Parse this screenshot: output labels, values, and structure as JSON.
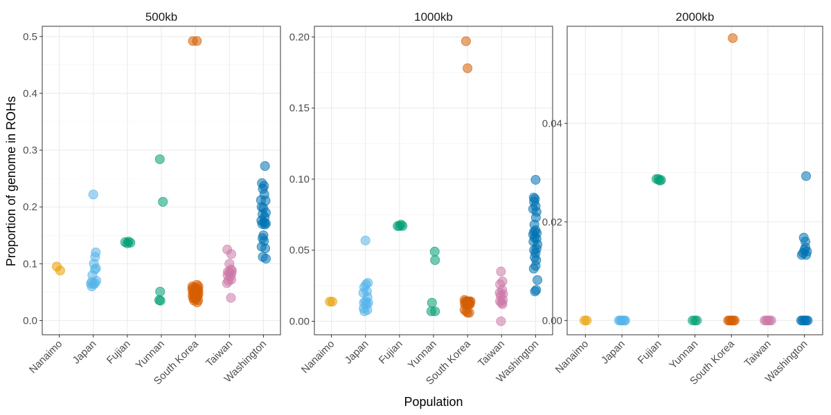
{
  "chart_data": {
    "type": "scatter",
    "subtype": "faceted jittered strip plot",
    "xlabel": "Population",
    "ylabel": "Proportion of genome in ROHs",
    "categories": [
      "Nanaimo",
      "Japan",
      "Fujian",
      "Yunnan",
      "South Korea",
      "Taiwan",
      "Washington"
    ],
    "colors": {
      "Nanaimo": "#E69F00",
      "Japan": "#56B4E9",
      "Fujian": "#009E73",
      "Yunnan": "#009E73",
      "South Korea": "#D55E00",
      "Taiwan": "#CC79A7",
      "Washington": "#0072B2"
    },
    "grid": true,
    "panels": [
      {
        "title": "500kb",
        "ylim": [
          -0.025,
          0.518
        ],
        "yticks": [
          0.0,
          0.1,
          0.2,
          0.3,
          0.4,
          0.5
        ],
        "ytick_labels": [
          "0.0",
          "0.1",
          "0.2",
          "0.3",
          "0.4",
          "0.5"
        ],
        "points": {
          "Nanaimo": [
            [
              -0.08,
              0.095
            ],
            [
              0.03,
              0.088
            ]
          ],
          "Japan": [
            [
              0.0,
              0.222
            ],
            [
              0.08,
              0.12
            ],
            [
              0.06,
              0.112
            ],
            [
              0.02,
              0.1
            ],
            [
              0.09,
              0.092
            ],
            [
              0.05,
              0.09
            ],
            [
              -0.03,
              0.08
            ],
            [
              0.1,
              0.07
            ],
            [
              -0.05,
              0.068
            ],
            [
              0.05,
              0.066
            ],
            [
              -0.08,
              0.065
            ],
            [
              0.02,
              0.064
            ],
            [
              -0.05,
              0.06
            ]
          ],
          "Fujian": [
            [
              -0.07,
              0.138
            ],
            [
              0.04,
              0.139
            ],
            [
              0.1,
              0.137
            ],
            [
              0.0,
              0.136
            ]
          ],
          "Yunnan": [
            [
              -0.05,
              0.284
            ],
            [
              0.05,
              0.209
            ],
            [
              -0.04,
              0.051
            ],
            [
              -0.07,
              0.036
            ],
            [
              -0.03,
              0.035
            ]
          ],
          "South Korea": [
            [
              -0.08,
              0.492
            ],
            [
              0.05,
              0.492
            ],
            [
              0.05,
              0.063
            ],
            [
              -0.1,
              0.06
            ],
            [
              0.1,
              0.06
            ],
            [
              -0.06,
              0.058
            ],
            [
              0.0,
              0.057
            ],
            [
              0.08,
              0.056
            ],
            [
              -0.1,
              0.055
            ],
            [
              0.04,
              0.054
            ],
            [
              -0.02,
              0.053
            ],
            [
              0.1,
              0.052
            ],
            [
              -0.08,
              0.05
            ],
            [
              0.06,
              0.05
            ],
            [
              0.0,
              0.049
            ],
            [
              -0.05,
              0.047
            ],
            [
              0.1,
              0.046
            ],
            [
              0.03,
              0.045
            ],
            [
              -0.09,
              0.044
            ],
            [
              0.07,
              0.043
            ],
            [
              -0.03,
              0.042
            ],
            [
              0.04,
              0.04
            ],
            [
              -0.07,
              0.039
            ],
            [
              0.0,
              0.038
            ],
            [
              0.09,
              0.036
            ],
            [
              -0.04,
              0.035
            ],
            [
              0.06,
              0.032
            ]
          ],
          "Taiwan": [
            [
              -0.07,
              0.125
            ],
            [
              0.06,
              0.117
            ],
            [
              0.0,
              0.1
            ],
            [
              0.05,
              0.09
            ],
            [
              0.08,
              0.088
            ],
            [
              -0.05,
              0.086
            ],
            [
              0.0,
              0.084
            ],
            [
              0.07,
              0.083
            ],
            [
              -0.06,
              0.08
            ],
            [
              0.03,
              0.078
            ],
            [
              0.06,
              0.072
            ],
            [
              -0.03,
              0.07
            ],
            [
              -0.08,
              0.066
            ],
            [
              0.05,
              0.04
            ]
          ],
          "Washington": [
            [
              0.05,
              0.272
            ],
            [
              -0.05,
              0.242
            ],
            [
              0.02,
              0.237
            ],
            [
              -0.02,
              0.232
            ],
            [
              0.03,
              0.222
            ],
            [
              -0.08,
              0.212
            ],
            [
              0.07,
              0.211
            ],
            [
              -0.06,
              0.2
            ],
            [
              0.0,
              0.198
            ],
            [
              0.08,
              0.19
            ],
            [
              -0.03,
              0.187
            ],
            [
              0.04,
              0.182
            ],
            [
              -0.07,
              0.176
            ],
            [
              0.02,
              0.173
            ],
            [
              0.08,
              0.171
            ],
            [
              -0.04,
              0.17
            ],
            [
              0.05,
              0.169
            ],
            [
              0.0,
              0.15
            ],
            [
              -0.03,
              0.145
            ],
            [
              0.02,
              0.14
            ],
            [
              -0.06,
              0.13
            ],
            [
              0.06,
              0.127
            ],
            [
              -0.02,
              0.112
            ],
            [
              0.08,
              0.109
            ]
          ]
        }
      },
      {
        "title": "1000kb",
        "ylim": [
          -0.0095,
          0.2075
        ],
        "yticks": [
          0.0,
          0.05,
          0.1,
          0.15,
          0.2
        ],
        "ytick_labels": [
          "0.00",
          "0.05",
          "0.10",
          "0.15",
          "0.20"
        ],
        "points": {
          "Nanaimo": [
            [
              -0.05,
              0.0138
            ],
            [
              0.03,
              0.0138
            ]
          ],
          "Japan": [
            [
              0.0,
              0.0568
            ],
            [
              0.08,
              0.027
            ],
            [
              0.02,
              0.026
            ],
            [
              -0.04,
              0.024
            ],
            [
              0.05,
              0.021
            ],
            [
              -0.07,
              0.02
            ],
            [
              0.07,
              0.017
            ],
            [
              0.0,
              0.014
            ],
            [
              -0.05,
              0.013
            ],
            [
              0.09,
              0.013
            ],
            [
              0.04,
              0.012
            ],
            [
              -0.06,
              0.009
            ],
            [
              0.06,
              0.008
            ],
            [
              -0.03,
              0.007
            ]
          ],
          "Fujian": [
            [
              -0.06,
              0.067
            ],
            [
              0.0,
              0.067
            ],
            [
              0.05,
              0.068
            ],
            [
              0.1,
              0.067
            ]
          ],
          "Yunnan": [
            [
              0.04,
              0.049
            ],
            [
              0.05,
              0.043
            ],
            [
              -0.05,
              0.013
            ],
            [
              -0.07,
              0.007
            ],
            [
              0.05,
              0.007
            ]
          ],
          "South Korea": [
            [
              -0.05,
              0.197
            ],
            [
              0.0,
              0.178
            ],
            [
              -0.1,
              0.015
            ],
            [
              -0.07,
              0.014
            ],
            [
              -0.03,
              0.014
            ],
            [
              0.0,
              0.014
            ],
            [
              0.03,
              0.014
            ],
            [
              0.06,
              0.014
            ],
            [
              0.1,
              0.014
            ],
            [
              -0.09,
              0.012
            ],
            [
              -0.05,
              0.012
            ],
            [
              -0.01,
              0.012
            ],
            [
              0.02,
              0.012
            ],
            [
              0.05,
              0.012
            ],
            [
              0.08,
              0.012
            ],
            [
              -0.1,
              0.008
            ],
            [
              -0.04,
              0.007
            ],
            [
              0.0,
              0.006
            ],
            [
              0.06,
              0.006
            ]
          ],
          "Taiwan": [
            [
              -0.02,
              0.035
            ],
            [
              0.03,
              0.028
            ],
            [
              -0.05,
              0.026
            ],
            [
              0.02,
              0.022
            ],
            [
              -0.06,
              0.02
            ],
            [
              0.05,
              0.019
            ],
            [
              -0.03,
              0.018
            ],
            [
              0.04,
              0.015
            ],
            [
              -0.05,
              0.014
            ],
            [
              0.0,
              0.013
            ],
            [
              0.03,
              0.012
            ],
            [
              -0.02,
              0.0
            ]
          ],
          "Washington": [
            [
              0.0,
              0.0995
            ],
            [
              -0.06,
              0.087
            ],
            [
              -0.02,
              0.086
            ],
            [
              -0.05,
              0.084
            ],
            [
              0.0,
              0.081
            ],
            [
              -0.08,
              0.079
            ],
            [
              0.03,
              0.077
            ],
            [
              0.01,
              0.073
            ],
            [
              -0.04,
              0.068
            ],
            [
              0.0,
              0.064
            ],
            [
              -0.05,
              0.063
            ],
            [
              0.04,
              0.062
            ],
            [
              -0.08,
              0.061
            ],
            [
              -0.03,
              0.059
            ],
            [
              0.03,
              0.058
            ],
            [
              -0.07,
              0.056
            ],
            [
              0.06,
              0.054
            ],
            [
              0.03,
              0.051
            ],
            [
              -0.05,
              0.05
            ],
            [
              0.0,
              0.048
            ],
            [
              -0.03,
              0.045
            ],
            [
              0.02,
              0.043
            ],
            [
              0.0,
              0.039
            ],
            [
              -0.06,
              0.037
            ],
            [
              0.06,
              0.029
            ],
            [
              0.02,
              0.022
            ],
            [
              -0.02,
              0.021
            ]
          ]
        }
      },
      {
        "title": "2000kb",
        "ylim": [
          -0.0029,
          0.0597
        ],
        "yticks": [
          0.0,
          0.02,
          0.04
        ],
        "ytick_labels": [
          "0.00",
          "0.02",
          "0.04"
        ],
        "points": {
          "Nanaimo": [
            [
              -0.03,
              0.0
            ],
            [
              0.04,
              0.0
            ]
          ],
          "Japan": [
            [
              -0.09,
              0.0
            ],
            [
              -0.05,
              0.0
            ],
            [
              -0.01,
              0.0
            ],
            [
              0.03,
              0.0
            ],
            [
              0.07,
              0.0
            ],
            [
              0.1,
              0.0
            ]
          ],
          "Fujian": [
            [
              -0.06,
              0.0287
            ],
            [
              0.0,
              0.0287
            ],
            [
              0.04,
              0.0284
            ],
            [
              0.08,
              0.0285
            ]
          ],
          "Yunnan": [
            [
              -0.07,
              0.0
            ],
            [
              0.0,
              0.0
            ],
            [
              0.06,
              0.0
            ]
          ],
          "South Korea": [
            [
              0.04,
              0.0573
            ],
            [
              -0.1,
              0.0
            ],
            [
              -0.06,
              0.0
            ],
            [
              -0.02,
              0.0
            ],
            [
              0.02,
              0.0
            ],
            [
              0.06,
              0.0
            ],
            [
              0.1,
              0.0
            ]
          ],
          "Taiwan": [
            [
              -0.1,
              0.0
            ],
            [
              -0.05,
              0.0
            ],
            [
              0.0,
              0.0
            ],
            [
              0.05,
              0.0
            ],
            [
              0.1,
              0.0
            ]
          ],
          "Washington": [
            [
              0.05,
              0.0293
            ],
            [
              -0.02,
              0.0168
            ],
            [
              0.03,
              0.016
            ],
            [
              0.03,
              0.0148
            ],
            [
              0.0,
              0.0143
            ],
            [
              0.08,
              0.014
            ],
            [
              -0.04,
              0.0137
            ],
            [
              0.05,
              0.0133
            ],
            [
              -0.08,
              0.0133
            ],
            [
              -0.1,
              0.0
            ],
            [
              -0.06,
              0.0
            ],
            [
              -0.02,
              0.0
            ],
            [
              0.02,
              0.0
            ],
            [
              0.06,
              0.0
            ],
            [
              0.1,
              0.0
            ]
          ]
        }
      }
    ]
  }
}
